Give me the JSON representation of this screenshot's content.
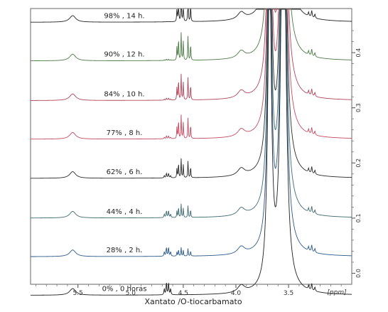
{
  "chart_data": {
    "type": "line",
    "title": "",
    "xlabel": "Xantato /O-tiocarbamato",
    "x_unit_label": "[ppm]",
    "xlim": [
      5.95,
      2.9
    ],
    "x_ticks": [
      "5.5",
      "5.0",
      "4.5",
      "4.0",
      "3.5"
    ],
    "x_tick_values": [
      5.5,
      5.0,
      4.5,
      4.0,
      3.5
    ],
    "y_ticks": [
      "0.0",
      "0.1",
      "0.2",
      "0.3",
      "0.4"
    ],
    "y_tick_values": [
      0.0,
      0.1,
      0.2,
      0.3,
      0.4
    ],
    "ylim": [
      -0.02,
      0.48
    ],
    "grid": false,
    "spectrum_peaks_ppm": {
      "broad_1": 5.55,
      "xanthate_quartet": 4.65,
      "product_multiplet": 4.5,
      "broad_2": 3.95,
      "solvent_1": 3.68,
      "solvent_2": 3.55,
      "triplet": 3.28
    },
    "series": [
      {
        "name": "98% , 14 h.",
        "offset": 0.455,
        "conversion": 0.98,
        "color": "#222222"
      },
      {
        "name": "90% , 12 h.",
        "offset": 0.385,
        "conversion": 0.9,
        "color": "#4d7a46"
      },
      {
        "name": "84% , 10 h.",
        "offset": 0.313,
        "conversion": 0.84,
        "color": "#b0455a"
      },
      {
        "name": "77% ,  8 h.",
        "offset": 0.243,
        "conversion": 0.77,
        "color": "#c44a60"
      },
      {
        "name": "62% , 6 h.",
        "offset": 0.172,
        "conversion": 0.62,
        "color": "#2a2a2a"
      },
      {
        "name": "44% , 4 h.",
        "offset": 0.1,
        "conversion": 0.44,
        "color": "#3f6a70"
      },
      {
        "name": "28% , 2 h.",
        "offset": 0.03,
        "conversion": 0.28,
        "color": "#2c5a8a"
      },
      {
        "name": "0% , 0 horas",
        "offset": -0.04,
        "conversion": 0.0,
        "color": "#1f1f1f"
      }
    ]
  }
}
